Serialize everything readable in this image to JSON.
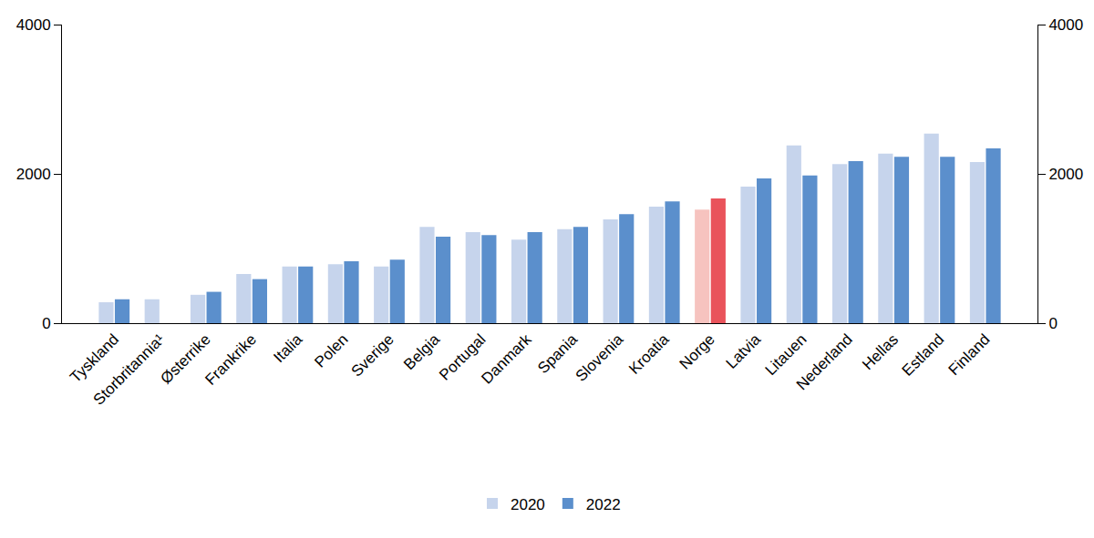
{
  "chart_data": {
    "type": "bar",
    "categories": [
      "Tyskland",
      "Storbritannia¹",
      "Østerrike",
      "Frankrike",
      "Italia",
      "Polen",
      "Sverige",
      "Belgia",
      "Portugal",
      "Danmark",
      "Spania",
      "Slovenia",
      "Kroatia",
      "Norge",
      "Latvia",
      "Litauen",
      "Nederland",
      "Hellas",
      "Estland",
      "Finland"
    ],
    "series": [
      {
        "name": "2020",
        "colors": [
          "#c6d4ec",
          "#c6d4ec",
          "#c6d4ec",
          "#c6d4ec",
          "#c6d4ec",
          "#c6d4ec",
          "#c6d4ec",
          "#c6d4ec",
          "#c6d4ec",
          "#c6d4ec",
          "#c6d4ec",
          "#c6d4ec",
          "#c6d4ec",
          "#f6c3bf",
          "#c6d4ec",
          "#c6d4ec",
          "#c6d4ec",
          "#c6d4ec",
          "#c6d4ec",
          "#c6d4ec"
        ],
        "values": [
          280,
          320,
          380,
          660,
          760,
          790,
          760,
          1290,
          1220,
          1120,
          1260,
          1390,
          1560,
          1520,
          1830,
          2380,
          2130,
          2270,
          2540,
          2160
        ]
      },
      {
        "name": "2022",
        "colors": [
          "#5b8fcc",
          "#5b8fcc",
          "#5b8fcc",
          "#5b8fcc",
          "#5b8fcc",
          "#5b8fcc",
          "#5b8fcc",
          "#5b8fcc",
          "#5b8fcc",
          "#5b8fcc",
          "#5b8fcc",
          "#5b8fcc",
          "#5b8fcc",
          "#e9535b",
          "#5b8fcc",
          "#5b8fcc",
          "#5b8fcc",
          "#5b8fcc",
          "#5b8fcc",
          "#5b8fcc"
        ],
        "values": [
          320,
          null,
          420,
          590,
          760,
          830,
          850,
          1160,
          1180,
          1220,
          1290,
          1460,
          1630,
          1670,
          1940,
          1980,
          2170,
          2230,
          2230,
          2340
        ]
      }
    ],
    "ylim": [
      0,
      4000
    ],
    "yticks": [
      0,
      2000,
      4000
    ],
    "y2lim": [
      0,
      4000
    ],
    "y2ticks": [
      0,
      2000,
      4000
    ],
    "grid": false,
    "legend": "bottom"
  }
}
